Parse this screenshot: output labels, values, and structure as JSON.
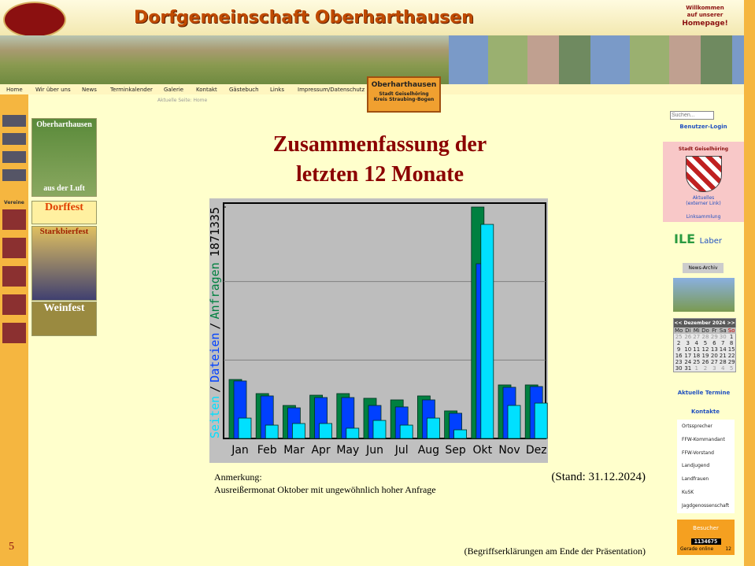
{
  "header": {
    "title": "Dorfgemeinschaft Oberharthausen",
    "welcome": [
      "Willkommen",
      "auf unserer"
    ],
    "homepage": "Homepage!"
  },
  "nav": [
    "Home",
    "Wir über uns",
    "News",
    "Terminkalender",
    "Galerie",
    "Kontakt",
    "Gästebuch",
    "Links",
    "Impressum/Datenschutz"
  ],
  "badge": {
    "name": "Oberharthausen",
    "city": "Stadt Geiselhöring",
    "district": "Kreis Straubing-Bogen"
  },
  "breadcrumb": "Aktuelle Seite: Home",
  "left": {
    "vereine": "Vereine",
    "thumbs": [
      [
        "Oberharthausen",
        "aus der Luft"
      ],
      [
        "Dorffest"
      ],
      [
        "Starkbierfest"
      ],
      [
        "Weinfest"
      ]
    ]
  },
  "slide": {
    "title": [
      "Zusammenfassung der",
      "letzten 12 Monate"
    ],
    "note_label": "Anmerkung:",
    "note": "Ausreißermonat Oktober mit ungewöhnlich hoher Anfrage",
    "stand": "(Stand: 31.12.2024)",
    "footer": "(Begriffserklärungen am Ende der Präsentation)",
    "page": "5"
  },
  "chart_data": {
    "type": "bar",
    "categories": [
      "Jan",
      "Feb",
      "Mar",
      "Apr",
      "May",
      "Jun",
      "Jul",
      "Aug",
      "Sep",
      "Okt",
      "Nov",
      "Dez"
    ],
    "ylim": [
      0,
      1871335
    ],
    "yticks": [
      1871335
    ],
    "legend_separator": "/",
    "series": [
      {
        "name": "Anfragen",
        "color": "#008040",
        "values": [
          477000,
          363000,
          267000,
          350000,
          363000,
          325000,
          312000,
          344000,
          223000,
          1871335,
          433000,
          433000
        ]
      },
      {
        "name": "Dateien",
        "color": "#0040ff",
        "values": [
          465000,
          344000,
          248000,
          331000,
          331000,
          267000,
          255000,
          312000,
          204000,
          1413000,
          414000,
          420000
        ]
      },
      {
        "name": "Seiten",
        "color": "#00e0ff",
        "values": [
          165000,
          108000,
          121000,
          121000,
          83000,
          146000,
          108000,
          165000,
          70000,
          1731000,
          267000,
          286000
        ]
      }
    ]
  },
  "right": {
    "search": "Suchen...",
    "login": "Benutzer-Login",
    "city": "Stadt Geiselhöring",
    "news": "Aktuelles",
    "external": "(externer Link)",
    "links": "Linksammlung",
    "ile": "ILE",
    "laber": "Laber",
    "archive": "News-Archiv",
    "calendar": {
      "month": "Dezember 2024",
      "prev": "<<",
      "next": ">>",
      "days": [
        "Mo",
        "Di",
        "Mi",
        "Do",
        "Fr",
        "Sa",
        "So"
      ],
      "weeks": [
        [
          25,
          26,
          27,
          28,
          29,
          30,
          1
        ],
        [
          2,
          3,
          4,
          5,
          6,
          7,
          8
        ],
        [
          9,
          10,
          11,
          12,
          13,
          14,
          15
        ],
        [
          16,
          17,
          18,
          19,
          20,
          21,
          22
        ],
        [
          23,
          24,
          25,
          26,
          27,
          28,
          29
        ],
        [
          30,
          31,
          1,
          2,
          3,
          4,
          5
        ]
      ]
    },
    "termine": "Aktuelle Termine",
    "kontakte": "Kontakte",
    "contacts": [
      "Ortssprecher",
      "FFW-Kommandant",
      "FFW-Vorstand",
      "Landjugend",
      "Landfrauen",
      "KuSK",
      "Jagdgenossenschaft"
    ],
    "visitors": "Besucher",
    "counter": "1134675",
    "online_label": "Gerade online",
    "online": "12"
  }
}
